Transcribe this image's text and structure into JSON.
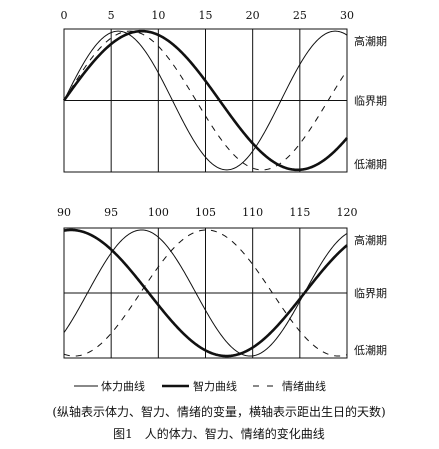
{
  "chart_data": [
    {
      "type": "line",
      "x_ticks": [
        0,
        5,
        10,
        15,
        20,
        25,
        30
      ],
      "xlim": [
        0,
        30
      ],
      "y_labels": [
        "高潮期",
        "临界期",
        "低潮期"
      ],
      "ylim": [
        -1,
        1
      ],
      "series": [
        {
          "key": "physical",
          "style": "thin",
          "period": 23,
          "x": [
            0,
            5.75,
            11.5,
            17.25,
            23,
            28.75
          ],
          "y": [
            0,
            1,
            0,
            -1,
            0,
            1
          ]
        },
        {
          "key": "intellectual",
          "style": "thick",
          "period": 33,
          "x": [
            0,
            8.25,
            16.5,
            24.75,
            30
          ],
          "y": [
            0,
            1,
            0,
            -1,
            -0.54
          ]
        },
        {
          "key": "emotional",
          "style": "dashed",
          "period": 28,
          "x": [
            0,
            7,
            14,
            21,
            28,
            30
          ],
          "y": [
            0,
            1,
            0,
            -1,
            0,
            0.43
          ]
        }
      ]
    },
    {
      "type": "line",
      "x_ticks": [
        90,
        95,
        100,
        105,
        110,
        115,
        120
      ],
      "xlim": [
        90,
        120
      ],
      "y_labels": [
        "高潮期",
        "临界期",
        "低潮期"
      ],
      "ylim": [
        -1,
        1
      ],
      "series": [
        {
          "key": "physical",
          "style": "thin",
          "period": 23,
          "x": [
            90,
            97.75,
            103.5,
            109.25,
            115,
            120
          ],
          "y": [
            -0.63,
            1,
            0,
            -1,
            0,
            0.94
          ]
        },
        {
          "key": "intellectual",
          "style": "thick",
          "period": 33,
          "x": [
            90,
            99,
            107.25,
            115.5,
            120
          ],
          "y": [
            1,
            0,
            -1,
            0,
            0.76
          ]
        },
        {
          "key": "emotional",
          "style": "dashed",
          "period": 28,
          "x": [
            90,
            91,
            98,
            105,
            112,
            119,
            120
          ],
          "y": [
            -0.97,
            -1,
            0,
            1,
            0,
            -1,
            -0.97
          ]
        }
      ]
    }
  ],
  "legend": {
    "items": [
      {
        "key": "physical",
        "label": "体力曲线",
        "style": "thin"
      },
      {
        "key": "intellectual",
        "label": "智力曲线",
        "style": "thick"
      },
      {
        "key": "emotional",
        "label": "情绪曲线",
        "style": "dashed"
      }
    ]
  },
  "note": "(纵轴表示体力、智力、情绪的变量，横轴表示距出生日的天数)",
  "caption": "图1　人的体力、智力、情绪的变化曲线"
}
